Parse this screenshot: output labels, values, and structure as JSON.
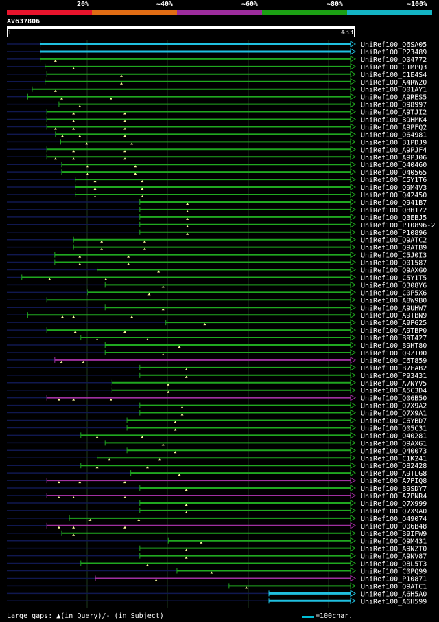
{
  "legend": {
    "labels": [
      "20%",
      "~40%",
      "~60%",
      "~80%",
      "~100%"
    ],
    "colors": [
      "#e8142c",
      "#e06c14",
      "#9c2c9c",
      "#1ca014",
      "#14b4c4"
    ]
  },
  "query": {
    "id": "AV637806",
    "start": "1",
    "end": "433"
  },
  "color_map": {
    "cyan": "#20c0e0",
    "green": "#20a820",
    "purple": "#a030a0",
    "navy": "#101850",
    "grid": "#1e3a1e"
  },
  "hits": [
    {
      "id": "UniRef100_Q6SA05",
      "a": 0.096,
      "b": 1.0,
      "c": "cyan",
      "t": []
    },
    {
      "id": "UniRef100_P23489",
      "a": 0.096,
      "b": 1.0,
      "c": "cyan",
      "t": []
    },
    {
      "id": "UniRef100_O04772",
      "a": 0.096,
      "b": 1.0,
      "c": "green",
      "t": [
        0.14
      ]
    },
    {
      "id": "UniRef100_C1MPQ3",
      "a": 0.11,
      "b": 1.0,
      "c": "green",
      "t": [
        0.192
      ]
    },
    {
      "id": "UniRef100_C1E4S4",
      "a": 0.115,
      "b": 1.0,
      "c": "green",
      "t": [
        0.33
      ]
    },
    {
      "id": "UniRef100_A4RW20",
      "a": 0.11,
      "b": 1.0,
      "c": "green",
      "t": [
        0.33
      ]
    },
    {
      "id": "UniRef100_Q01AY1",
      "a": 0.073,
      "b": 1.0,
      "c": "green",
      "t": [
        0.14
      ]
    },
    {
      "id": "UniRef100_A9RES5",
      "a": 0.06,
      "b": 1.0,
      "c": "green",
      "t": [
        0.158,
        0.3
      ]
    },
    {
      "id": "UniRef100_Q98997",
      "a": 0.15,
      "b": 1.0,
      "c": "green",
      "t": [
        0.21
      ]
    },
    {
      "id": "UniRef100_A9TJI2",
      "a": 0.115,
      "b": 1.0,
      "c": "green",
      "t": [
        0.192,
        0.34
      ]
    },
    {
      "id": "UniRef100_B9HMK4",
      "a": 0.115,
      "b": 1.0,
      "c": "green",
      "t": [
        0.192,
        0.34
      ]
    },
    {
      "id": "UniRef100_A9PFQ2",
      "a": 0.115,
      "b": 1.0,
      "c": "green",
      "t": [
        0.14,
        0.192,
        0.34
      ]
    },
    {
      "id": "UniRef100_O64981",
      "a": 0.14,
      "b": 1.0,
      "c": "green",
      "t": [
        0.16,
        0.21,
        0.34
      ]
    },
    {
      "id": "UniRef100_B1PDJ9",
      "a": 0.155,
      "b": 1.0,
      "c": "green",
      "t": [
        0.23,
        0.36
      ]
    },
    {
      "id": "UniRef100_A9PJF4",
      "a": 0.115,
      "b": 1.0,
      "c": "green",
      "t": [
        0.192,
        0.34
      ]
    },
    {
      "id": "UniRef100_A9PJ06",
      "a": 0.115,
      "b": 1.0,
      "c": "green",
      "t": [
        0.14,
        0.192,
        0.34
      ]
    },
    {
      "id": "UniRef100_Q40460",
      "a": 0.158,
      "b": 1.0,
      "c": "green",
      "t": [
        0.233,
        0.37
      ]
    },
    {
      "id": "UniRef100_Q40565",
      "a": 0.158,
      "b": 1.0,
      "c": "green",
      "t": [
        0.233,
        0.37
      ]
    },
    {
      "id": "UniRef100_C5Y1T6",
      "a": 0.197,
      "b": 1.0,
      "c": "green",
      "t": [
        0.254,
        0.39
      ]
    },
    {
      "id": "UniRef100_Q9M4V3",
      "a": 0.197,
      "b": 1.0,
      "c": "green",
      "t": [
        0.254,
        0.39
      ]
    },
    {
      "id": "UniRef100_Q42450",
      "a": 0.197,
      "b": 1.0,
      "c": "green",
      "t": [
        0.254,
        0.39
      ]
    },
    {
      "id": "UniRef100_Q941B7",
      "a": 0.383,
      "b": 1.0,
      "c": "green",
      "t": [
        0.52
      ]
    },
    {
      "id": "UniRef100_Q8H172",
      "a": 0.383,
      "b": 1.0,
      "c": "green",
      "t": [
        0.52
      ]
    },
    {
      "id": "UniRef100_Q3EBJ5",
      "a": 0.383,
      "b": 1.0,
      "c": "green",
      "t": [
        0.52
      ]
    },
    {
      "id": "UniRef100_P10896-2",
      "a": 0.383,
      "b": 1.0,
      "c": "green",
      "t": [
        0.52
      ]
    },
    {
      "id": "UniRef100_P10896",
      "a": 0.383,
      "b": 1.0,
      "c": "green",
      "t": [
        0.52
      ]
    },
    {
      "id": "UniRef100_Q9ATC2",
      "a": 0.192,
      "b": 1.0,
      "c": "green",
      "t": [
        0.273,
        0.397
      ]
    },
    {
      "id": "UniRef100_Q9ATB9",
      "a": 0.192,
      "b": 1.0,
      "c": "green",
      "t": [
        0.273,
        0.397
      ]
    },
    {
      "id": "UniRef100_C5J0I3",
      "a": 0.138,
      "b": 1.0,
      "c": "green",
      "t": [
        0.21,
        0.35
      ]
    },
    {
      "id": "UniRef100_Q01587",
      "a": 0.138,
      "b": 1.0,
      "c": "green",
      "t": [
        0.21,
        0.35
      ]
    },
    {
      "id": "UniRef100_Q9AXG0",
      "a": 0.26,
      "b": 1.0,
      "c": "green",
      "t": [
        0.437
      ]
    },
    {
      "id": "UniRef100_C5Y1T5",
      "a": 0.043,
      "b": 1.0,
      "c": "green",
      "t": [
        0.123,
        0.285
      ]
    },
    {
      "id": "UniRef100_Q308Y6",
      "a": 0.283,
      "b": 1.0,
      "c": "green",
      "t": [
        0.45
      ]
    },
    {
      "id": "UniRef100_C0P5X6",
      "a": 0.233,
      "b": 1.0,
      "c": "green",
      "t": [
        0.41
      ]
    },
    {
      "id": "UniRef100_A8W9B0",
      "a": 0.115,
      "b": 1.0,
      "c": "green",
      "t": []
    },
    {
      "id": "UniRef100_A9UHW7",
      "a": 0.283,
      "b": 1.0,
      "c": "green",
      "t": [
        0.45
      ]
    },
    {
      "id": "UniRef100_A9TBN9",
      "a": 0.06,
      "b": 1.0,
      "c": "green",
      "t": [
        0.16,
        0.192,
        0.36
      ]
    },
    {
      "id": "UniRef100_A9PG25",
      "a": 0.458,
      "b": 1.0,
      "c": "green",
      "t": [
        0.57
      ]
    },
    {
      "id": "UniRef100_A9TBP0",
      "a": 0.115,
      "b": 1.0,
      "c": "green",
      "t": [
        0.197,
        0.34
      ]
    },
    {
      "id": "UniRef100_B9T427",
      "a": 0.213,
      "b": 1.0,
      "c": "green",
      "t": [
        0.26,
        0.405
      ]
    },
    {
      "id": "UniRef100_B9HT80",
      "a": 0.283,
      "b": 1.0,
      "c": "green",
      "t": [
        0.497
      ]
    },
    {
      "id": "UniRef100_Q9ZT00",
      "a": 0.283,
      "b": 1.0,
      "c": "green",
      "t": [
        0.45
      ]
    },
    {
      "id": "UniRef100_C6T859",
      "a": 0.138,
      "b": 1.0,
      "c": "purple",
      "t": [
        0.157,
        0.22
      ]
    },
    {
      "id": "UniRef100_B7EAB2",
      "a": 0.383,
      "b": 1.0,
      "c": "green",
      "t": [
        0.517
      ]
    },
    {
      "id": "UniRef100_P93431",
      "a": 0.383,
      "b": 1.0,
      "c": "green",
      "t": [
        0.517
      ]
    },
    {
      "id": "UniRef100_A7NYV5",
      "a": 0.303,
      "b": 1.0,
      "c": "green",
      "t": [
        0.465
      ]
    },
    {
      "id": "UniRef100_A5C3D4",
      "a": 0.303,
      "b": 1.0,
      "c": "green",
      "t": [
        0.465
      ]
    },
    {
      "id": "UniRef100_Q06B50",
      "a": 0.115,
      "b": 1.0,
      "c": "purple",
      "t": [
        0.15,
        0.192,
        0.3
      ]
    },
    {
      "id": "UniRef100_Q7X9A2",
      "a": 0.383,
      "b": 1.0,
      "c": "green",
      "t": [
        0.505
      ]
    },
    {
      "id": "UniRef100_Q7X9A1",
      "a": 0.383,
      "b": 1.0,
      "c": "green",
      "t": [
        0.505
      ]
    },
    {
      "id": "UniRef100_C6YBD7",
      "a": 0.346,
      "b": 1.0,
      "c": "green",
      "t": [
        0.485
      ]
    },
    {
      "id": "UniRef100_Q05C31",
      "a": 0.346,
      "b": 1.0,
      "c": "green",
      "t": [
        0.485
      ]
    },
    {
      "id": "UniRef100_Q40281",
      "a": 0.213,
      "b": 1.0,
      "c": "green",
      "t": [
        0.26,
        0.39
      ]
    },
    {
      "id": "UniRef100_Q9AXG1",
      "a": 0.283,
      "b": 1.0,
      "c": "green",
      "t": [
        0.45
      ]
    },
    {
      "id": "UniRef100_Q40073",
      "a": 0.346,
      "b": 1.0,
      "c": "green",
      "t": [
        0.485
      ]
    },
    {
      "id": "UniRef100_C1K241",
      "a": 0.26,
      "b": 1.0,
      "c": "green",
      "t": [
        0.295,
        0.44
      ]
    },
    {
      "id": "UniRef100_O82428",
      "a": 0.213,
      "b": 1.0,
      "c": "green",
      "t": [
        0.26,
        0.405
      ]
    },
    {
      "id": "UniRef100_A9TLG8",
      "a": 0.357,
      "b": 1.0,
      "c": "green",
      "t": [
        0.497
      ]
    },
    {
      "id": "UniRef100_A7PIQ8",
      "a": 0.115,
      "b": 1.0,
      "c": "purple",
      "t": [
        0.15,
        0.21,
        0.34
      ]
    },
    {
      "id": "UniRef100_B9SDY7",
      "a": 0.383,
      "b": 1.0,
      "c": "green",
      "t": [
        0.517
      ]
    },
    {
      "id": "UniRef100_A7PNR4",
      "a": 0.115,
      "b": 1.0,
      "c": "purple",
      "t": [
        0.15,
        0.192,
        0.34
      ]
    },
    {
      "id": "UniRef100_Q7X999",
      "a": 0.383,
      "b": 1.0,
      "c": "green",
      "t": [
        0.517
      ]
    },
    {
      "id": "UniRef100_Q7X9A0",
      "a": 0.383,
      "b": 1.0,
      "c": "green",
      "t": [
        0.517
      ]
    },
    {
      "id": "UniRef100_O49074",
      "a": 0.18,
      "b": 1.0,
      "c": "green",
      "t": [
        0.24,
        0.38
      ]
    },
    {
      "id": "UniRef100_Q06B48",
      "a": 0.115,
      "b": 1.0,
      "c": "purple",
      "t": [
        0.15,
        0.192,
        0.34
      ]
    },
    {
      "id": "UniRef100_B9IFW9",
      "a": 0.158,
      "b": 1.0,
      "c": "green",
      "t": [
        0.192
      ]
    },
    {
      "id": "UniRef100_Q9M431",
      "a": 0.465,
      "b": 1.0,
      "c": "green",
      "t": [
        0.56
      ]
    },
    {
      "id": "UniRef100_A9NZT0",
      "a": 0.383,
      "b": 1.0,
      "c": "green",
      "t": [
        0.517
      ]
    },
    {
      "id": "UniRef100_A9NV87",
      "a": 0.383,
      "b": 1.0,
      "c": "green",
      "t": [
        0.517
      ]
    },
    {
      "id": "UniRef100_Q8L5T3",
      "a": 0.213,
      "b": 1.0,
      "c": "green",
      "t": [
        0.405
      ]
    },
    {
      "id": "UniRef100_C0PQ99",
      "a": 0.49,
      "b": 1.0,
      "c": "green",
      "t": [
        0.59
      ]
    },
    {
      "id": "UniRef100_P10871",
      "a": 0.255,
      "b": 1.0,
      "c": "purple",
      "t": [
        0.43
      ]
    },
    {
      "id": "UniRef100_Q9ATC1",
      "a": 0.64,
      "b": 1.0,
      "c": "green",
      "t": [
        0.69
      ]
    },
    {
      "id": "UniRef100_A6H5A0",
      "a": 0.755,
      "b": 1.0,
      "c": "cyan",
      "t": []
    },
    {
      "id": "UniRef100_A6H599",
      "a": 0.755,
      "b": 1.0,
      "c": "cyan",
      "t": []
    }
  ],
  "footer": {
    "gaps_text": "Large gaps: ▲(in Query)/- (in Subject)",
    "scale_text": "=100char."
  }
}
